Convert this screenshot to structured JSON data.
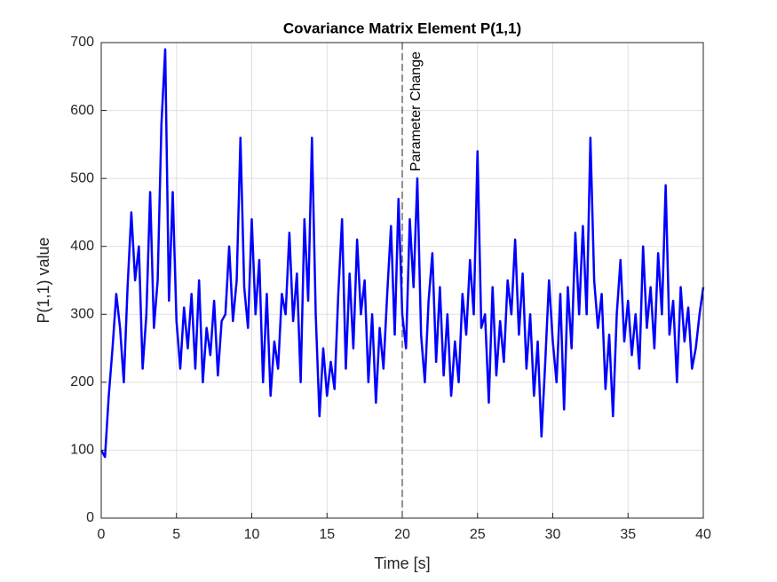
{
  "chart_data": {
    "type": "line",
    "title": "Covariance Matrix Element P(1,1)",
    "xlabel": "Time [s]",
    "ylabel": "P(1,1) value",
    "color": "#0000ff",
    "grid": true,
    "xlim": [
      0,
      40
    ],
    "xticks": [
      0,
      5,
      10,
      15,
      20,
      25,
      30,
      35,
      40
    ],
    "ylim": [
      0,
      700
    ],
    "yticks": [
      0,
      100,
      200,
      300,
      400,
      500,
      600,
      700
    ],
    "annotations": [
      {
        "x": 20,
        "text": "Parameter Change"
      }
    ],
    "x": [
      0,
      0.25,
      0.5,
      0.75,
      1,
      1.25,
      1.5,
      1.75,
      2,
      2.25,
      2.5,
      2.75,
      3,
      3.25,
      3.5,
      3.75,
      4,
      4.25,
      4.5,
      4.75,
      5,
      5.25,
      5.5,
      5.75,
      6,
      6.25,
      6.5,
      6.75,
      7,
      7.25,
      7.5,
      7.75,
      8,
      8.25,
      8.5,
      8.75,
      9,
      9.25,
      9.5,
      9.75,
      10,
      10.25,
      10.5,
      10.75,
      11,
      11.25,
      11.5,
      11.75,
      12,
      12.25,
      12.5,
      12.75,
      13,
      13.25,
      13.5,
      13.75,
      14,
      14.25,
      14.5,
      14.75,
      15,
      15.25,
      15.5,
      15.75,
      16,
      16.25,
      16.5,
      16.75,
      17,
      17.25,
      17.5,
      17.75,
      18,
      18.25,
      18.5,
      18.75,
      19,
      19.25,
      19.5,
      19.75,
      20,
      20.25,
      20.5,
      20.75,
      21,
      21.25,
      21.5,
      21.75,
      22,
      22.25,
      22.5,
      22.75,
      23,
      23.25,
      23.5,
      23.75,
      24,
      24.25,
      24.5,
      24.75,
      25,
      25.25,
      25.5,
      25.75,
      26,
      26.25,
      26.5,
      26.75,
      27,
      27.25,
      27.5,
      27.75,
      28,
      28.25,
      28.5,
      28.75,
      29,
      29.25,
      29.5,
      29.75,
      30,
      30.25,
      30.5,
      30.75,
      31,
      31.25,
      31.5,
      31.75,
      32,
      32.25,
      32.5,
      32.75,
      33,
      33.25,
      33.5,
      33.75,
      34,
      34.25,
      34.5,
      34.75,
      35,
      35.25,
      35.5,
      35.75,
      36,
      36.25,
      36.5,
      36.75,
      37,
      37.25,
      37.5,
      37.75,
      38,
      38.25,
      38.5,
      38.75,
      39,
      39.25,
      39.5,
      39.75,
      40
    ],
    "values": [
      100,
      90,
      180,
      250,
      330,
      280,
      200,
      340,
      450,
      350,
      400,
      220,
      300,
      480,
      280,
      350,
      580,
      690,
      320,
      480,
      290,
      220,
      310,
      250,
      330,
      220,
      350,
      200,
      280,
      240,
      320,
      210,
      290,
      300,
      400,
      290,
      350,
      560,
      340,
      280,
      440,
      300,
      380,
      200,
      330,
      180,
      260,
      220,
      330,
      300,
      420,
      290,
      360,
      200,
      440,
      320,
      560,
      300,
      150,
      250,
      180,
      230,
      190,
      330,
      440,
      220,
      360,
      250,
      410,
      300,
      350,
      200,
      300,
      170,
      280,
      220,
      330,
      430,
      270,
      470,
      300,
      250,
      440,
      340,
      500,
      270,
      200,
      320,
      390,
      230,
      340,
      210,
      300,
      180,
      260,
      200,
      330,
      270,
      380,
      300,
      540,
      280,
      300,
      170,
      340,
      210,
      290,
      230,
      350,
      300,
      410,
      270,
      360,
      220,
      300,
      180,
      260,
      120,
      230,
      350,
      260,
      200,
      330,
      160,
      340,
      250,
      420,
      300,
      430,
      300,
      560,
      350,
      280,
      330,
      190,
      270,
      150,
      300,
      380,
      260,
      320,
      240,
      300,
      220,
      400,
      280,
      340,
      250,
      390,
      300,
      490,
      270,
      320,
      200,
      340,
      260,
      310,
      220,
      250,
      300,
      340
    ]
  }
}
